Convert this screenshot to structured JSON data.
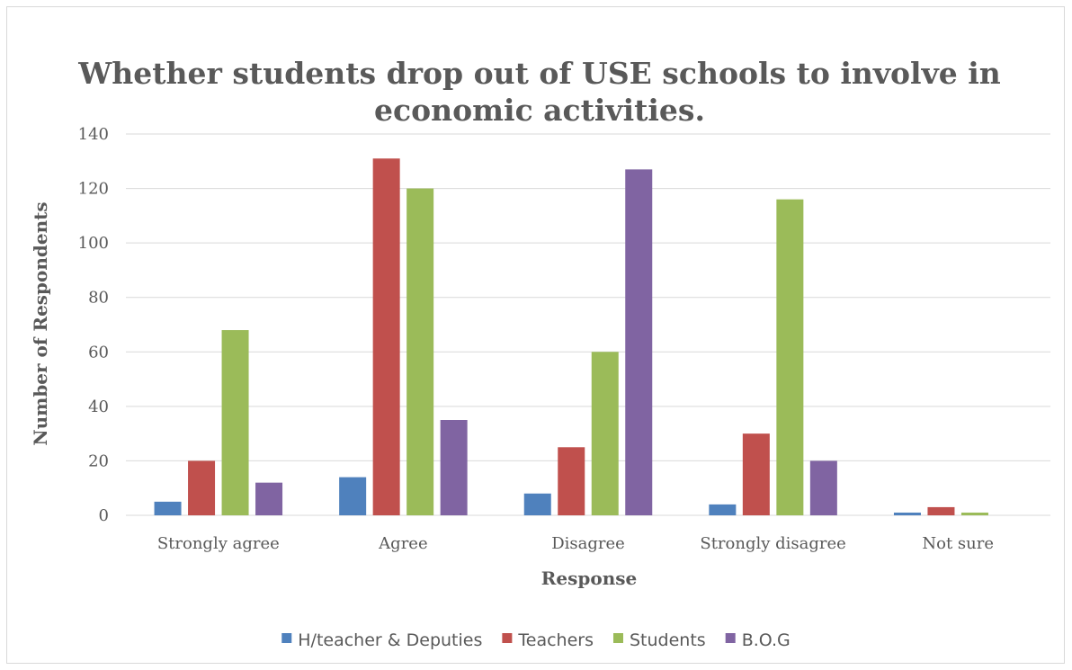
{
  "chart_data": {
    "type": "bar",
    "title": "Whether students drop out of USE schools to involve in economic activities.",
    "title_lines": [
      "Whether students drop out of USE schools to involve in",
      "economic activities."
    ],
    "xlabel": "Response",
    "ylabel": "Number of Respondents",
    "categories": [
      "Strongly agree",
      "Agree",
      "Disagree",
      "Strongly disagree",
      "Not sure"
    ],
    "ylim": [
      0,
      140
    ],
    "yticks": [
      0,
      20,
      40,
      60,
      80,
      100,
      120,
      140
    ],
    "grid": true,
    "legend_position": "bottom",
    "series": [
      {
        "name": "H/teacher & Deputies",
        "color": "#4f81bd",
        "values": [
          5,
          14,
          8,
          4,
          1
        ]
      },
      {
        "name": "Teachers",
        "color": "#c0504d",
        "values": [
          20,
          131,
          25,
          30,
          3
        ]
      },
      {
        "name": "Students",
        "color": "#9bbb59",
        "values": [
          68,
          120,
          60,
          116,
          1
        ]
      },
      {
        "name": "B.O.G",
        "color": "#8064a2",
        "values": [
          12,
          35,
          127,
          20,
          0
        ]
      }
    ]
  }
}
